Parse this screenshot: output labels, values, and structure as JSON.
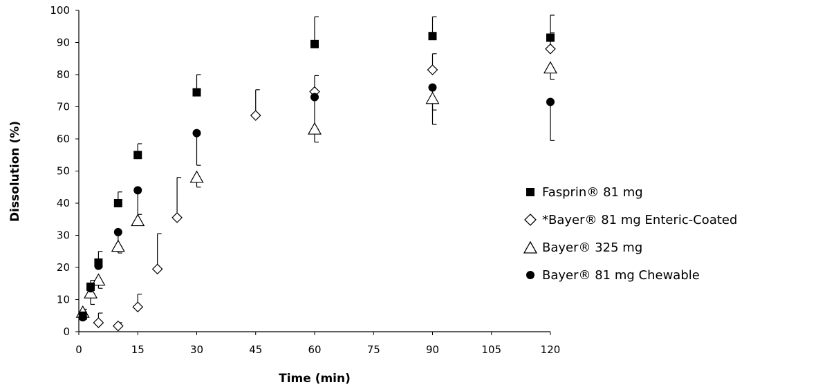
{
  "chart_data": {
    "type": "scatter",
    "xlabel": "Time (min)",
    "ylabel": "Dissolution (%)",
    "xlim": [
      0,
      120
    ],
    "ylim": [
      0,
      100
    ],
    "x_ticks": [
      0,
      15,
      30,
      45,
      60,
      75,
      90,
      105,
      120
    ],
    "y_ticks": [
      0,
      10,
      20,
      30,
      40,
      50,
      60,
      70,
      80,
      90,
      100
    ],
    "grid": false,
    "legend_position": "right",
    "series": [
      {
        "name": "Fasprin® 81 mg",
        "marker": "filled-square",
        "color": "#000000",
        "points": [
          {
            "x": 1,
            "y": 5,
            "err_plus": 2
          },
          {
            "x": 3,
            "y": 14,
            "err_plus": 2
          },
          {
            "x": 5,
            "y": 21.5,
            "err_plus": 3.5
          },
          {
            "x": 10,
            "y": 40,
            "err_plus": 3.5
          },
          {
            "x": 15,
            "y": 55,
            "err_plus": 3.5
          },
          {
            "x": 30,
            "y": 74.5,
            "err_plus": 5.5
          },
          {
            "x": 60,
            "y": 89.5,
            "err_plus": 8.5
          },
          {
            "x": 90,
            "y": 92,
            "err_plus": 6
          },
          {
            "x": 120,
            "y": 91.5,
            "err_plus": 7
          }
        ]
      },
      {
        "name": "*Bayer® 81 mg Enteric-Coated",
        "marker": "open-diamond",
        "color": "#000000",
        "points": [
          {
            "x": 5,
            "y": 2.8,
            "err_plus": 3
          },
          {
            "x": 10,
            "y": 1.8,
            "err_plus": 1
          },
          {
            "x": 15,
            "y": 7.7,
            "err_plus": 4
          },
          {
            "x": 20,
            "y": 19.5,
            "err_plus": 11
          },
          {
            "x": 25,
            "y": 35.5,
            "err_plus": 12.5
          },
          {
            "x": 45,
            "y": 67.3,
            "err_plus": 8
          },
          {
            "x": 60,
            "y": 74.7,
            "err_plus": 5
          },
          {
            "x": 90,
            "y": 81.5,
            "err_plus": 5
          },
          {
            "x": 120,
            "y": 88,
            "err_plus": 5
          }
        ]
      },
      {
        "name": "Bayer® 325 mg",
        "marker": "open-triangle",
        "color": "#000000",
        "points": [
          {
            "x": 1,
            "y": 6,
            "err_minus": 2
          },
          {
            "x": 3,
            "y": 12,
            "err_minus": 3.5
          },
          {
            "x": 5,
            "y": 16,
            "err_minus": 2.5
          },
          {
            "x": 10,
            "y": 26.5,
            "err_minus": 2
          },
          {
            "x": 15,
            "y": 34.5,
            "err_minus": 0
          },
          {
            "x": 30,
            "y": 48,
            "err_minus": 3
          },
          {
            "x": 60,
            "y": 63,
            "err_minus": 4
          },
          {
            "x": 90,
            "y": 72.5,
            "err_minus": 8
          },
          {
            "x": 120,
            "y": 82,
            "err_minus": 3.5
          }
        ]
      },
      {
        "name": "Bayer® 81 mg Chewable",
        "marker": "filled-circle",
        "color": "#000000",
        "points": [
          {
            "x": 1,
            "y": 4.5,
            "err_minus": 0.5
          },
          {
            "x": 3,
            "y": 13.5,
            "err_minus": 0.5
          },
          {
            "x": 5,
            "y": 20.5,
            "err_minus": 0.5
          },
          {
            "x": 10,
            "y": 31,
            "err_minus": 4.5
          },
          {
            "x": 15,
            "y": 44,
            "err_minus": 7.5
          },
          {
            "x": 30,
            "y": 61.8,
            "err_minus": 10
          },
          {
            "x": 60,
            "y": 73,
            "err_minus": 10
          },
          {
            "x": 90,
            "y": 76,
            "err_minus": 7
          },
          {
            "x": 120,
            "y": 71.5,
            "err_minus": 12
          }
        ]
      }
    ]
  }
}
